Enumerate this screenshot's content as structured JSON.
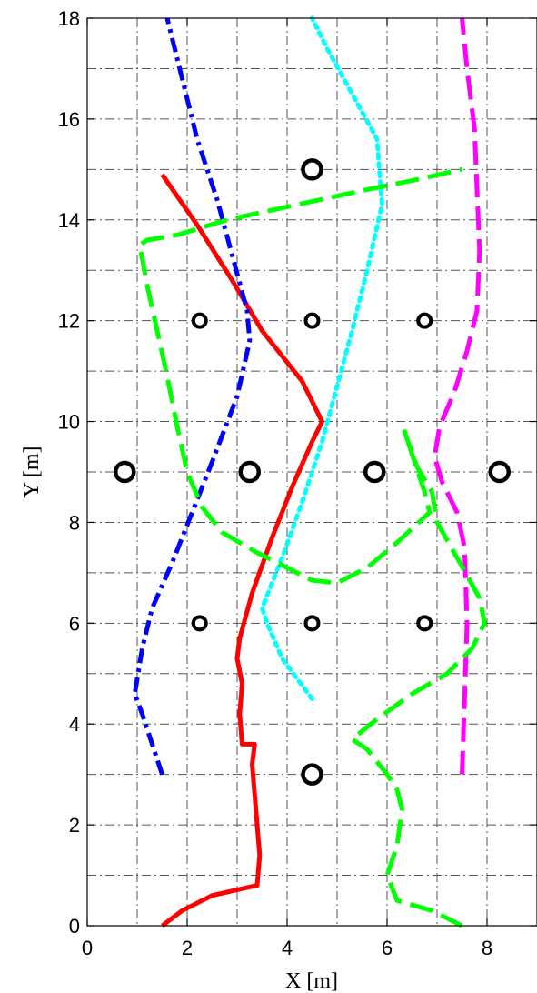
{
  "chart_data": {
    "type": "line",
    "title": "",
    "xlabel": "X [m]",
    "ylabel": "Y [m]",
    "xlim": [
      0,
      9
    ],
    "ylim": [
      0,
      18
    ],
    "xticks": [
      0,
      2,
      4,
      6,
      8
    ],
    "yticks": [
      0,
      2,
      4,
      6,
      8,
      10,
      12,
      14,
      16,
      18
    ],
    "grid": true,
    "grid_style": "dash-dot",
    "series": [
      {
        "color": "#ff0000",
        "line_style": "solid",
        "x": [
          1.5,
          1.9,
          2.5,
          3.4,
          3.45,
          3.4,
          3.35,
          3.3,
          3.35,
          3.1,
          3.05,
          3.1,
          3.0,
          3.05,
          3.3,
          3.7,
          4.1,
          4.5,
          4.7,
          4.3,
          3.5,
          2.9,
          2.2,
          1.5
        ],
        "y": [
          0,
          0.3,
          0.6,
          0.8,
          1.4,
          2.0,
          2.6,
          3.2,
          3.6,
          3.6,
          4.2,
          4.8,
          5.3,
          5.7,
          6.6,
          7.7,
          8.7,
          9.6,
          10.0,
          10.8,
          11.8,
          12.8,
          13.9,
          14.9
        ]
      },
      {
        "color": "#0000ff",
        "line_style": "dash-dot",
        "x": [
          1.5,
          1.3,
          1.1,
          0.95,
          1.1,
          1.3,
          1.7,
          2.1,
          2.5,
          3.0,
          3.25,
          3.2,
          2.9,
          2.6,
          2.2,
          1.9,
          1.6
        ],
        "y": [
          3.0,
          3.6,
          4.2,
          4.6,
          5.5,
          6.3,
          7.2,
          8.2,
          9.2,
          10.5,
          11.6,
          12.2,
          13.3,
          14.4,
          15.6,
          16.8,
          18.0
        ]
      },
      {
        "color": "#00ffff",
        "line_style": "dotted",
        "x": [
          4.5,
          4.2,
          3.9,
          3.6,
          3.5,
          3.9,
          4.3,
          4.7,
          5.0,
          5.3,
          5.6,
          5.9,
          5.8,
          5.3,
          4.8,
          4.5
        ],
        "y": [
          4.5,
          4.9,
          5.3,
          6.0,
          6.3,
          7.3,
          8.4,
          9.6,
          10.7,
          11.8,
          13.0,
          14.3,
          15.6,
          16.5,
          17.4,
          18.0
        ]
      },
      {
        "color": "#ff00ff",
        "line_style": "dashed",
        "x": [
          7.5,
          7.55,
          7.6,
          7.55,
          7.4,
          7.1,
          6.95,
          7.05,
          7.35,
          7.6,
          7.8,
          7.85,
          7.8,
          7.75,
          7.6,
          7.5
        ],
        "y": [
          3.0,
          4.5,
          6.0,
          7.5,
          8.2,
          8.8,
          9.3,
          9.9,
          10.6,
          11.4,
          12.2,
          13.4,
          14.6,
          15.8,
          17.0,
          18.0
        ]
      },
      {
        "color": "#00ff00",
        "line_style": "dashed",
        "x": [
          7.5,
          6.9,
          6.2,
          6.0,
          6.2,
          6.3,
          6.2,
          6.0,
          5.6,
          5.3,
          5.8,
          6.5,
          7.2,
          7.7,
          7.95,
          7.85,
          7.4,
          7.0,
          6.9,
          6.6,
          6.35,
          6.75,
          6.85,
          6.2,
          5.6,
          5.0,
          4.5,
          4.0,
          3.4,
          2.7,
          2.3,
          2.0,
          1.8,
          1.6,
          1.4,
          1.2,
          1.05,
          1.2,
          1.8,
          2.8,
          4.2,
          5.6,
          6.6,
          7.5
        ],
        "y": [
          0.0,
          0.3,
          0.5,
          1.0,
          1.6,
          2.3,
          2.7,
          3.0,
          3.5,
          3.7,
          4.1,
          4.6,
          5.0,
          5.5,
          6.0,
          6.5,
          7.3,
          8.0,
          8.6,
          9.1,
          9.8,
          8.6,
          8.2,
          7.6,
          7.1,
          6.8,
          6.85,
          7.1,
          7.4,
          7.8,
          8.3,
          9.0,
          9.9,
          10.9,
          11.8,
          12.7,
          13.5,
          13.6,
          13.7,
          14.0,
          14.3,
          14.6,
          14.8,
          15.0
        ]
      }
    ],
    "markers": {
      "color": "#000000",
      "shape": "circle",
      "large": [
        {
          "x": 4.5,
          "y": 3
        },
        {
          "x": 0.75,
          "y": 9
        },
        {
          "x": 3.25,
          "y": 9
        },
        {
          "x": 5.75,
          "y": 9
        },
        {
          "x": 8.25,
          "y": 9
        },
        {
          "x": 4.5,
          "y": 15
        }
      ],
      "small": [
        {
          "x": 2.25,
          "y": 6
        },
        {
          "x": 4.5,
          "y": 6
        },
        {
          "x": 6.75,
          "y": 6
        },
        {
          "x": 2.25,
          "y": 12
        },
        {
          "x": 4.5,
          "y": 12
        },
        {
          "x": 6.75,
          "y": 12
        }
      ]
    }
  }
}
